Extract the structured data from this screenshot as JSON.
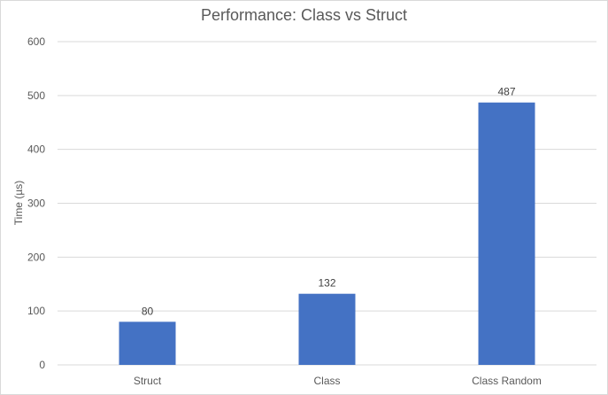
{
  "chart_data": {
    "type": "bar",
    "title": "Performance: Class vs Struct",
    "ylabel": "Time (µs)",
    "xlabel": "",
    "categories": [
      "Struct",
      "Class",
      "Class Random"
    ],
    "values": [
      80,
      132,
      487
    ],
    "data_labels": [
      "80",
      "132",
      "487"
    ],
    "ylim": [
      0,
      600
    ],
    "yticks": [
      0,
      100,
      200,
      300,
      400,
      500,
      600
    ],
    "grid": true,
    "legend": "none",
    "bar_color": "#4472c4",
    "gridline_color": "#d9d9d9"
  }
}
